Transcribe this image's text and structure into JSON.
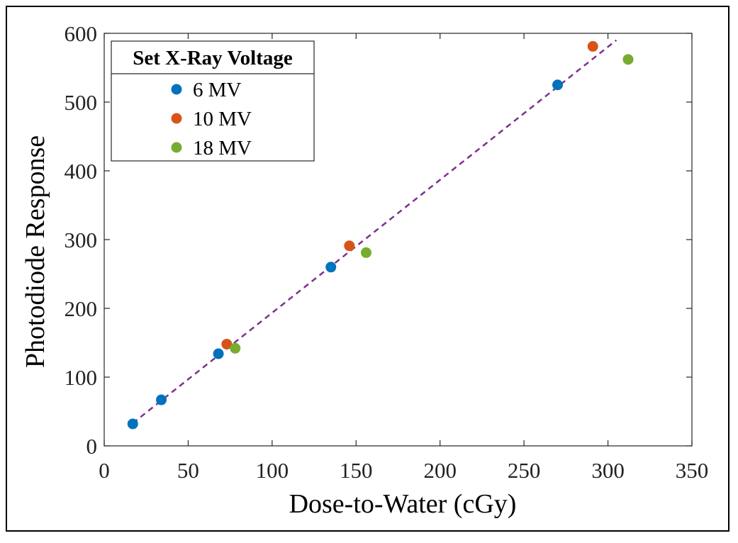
{
  "chart_data": {
    "type": "scatter",
    "title": "",
    "xlabel": "Dose-to-Water (cGy)",
    "ylabel": "Photodiode Response",
    "xlim": [
      0,
      350
    ],
    "ylim": [
      0,
      600
    ],
    "xticks": [
      0,
      50,
      100,
      150,
      200,
      250,
      300,
      350
    ],
    "yticks": [
      0,
      100,
      200,
      300,
      400,
      500,
      600
    ],
    "xtick_labels": [
      "0",
      "50",
      "100",
      "150",
      "200",
      "250",
      "300",
      "350"
    ],
    "ytick_labels": [
      "0",
      "100",
      "200",
      "300",
      "400",
      "500",
      "600"
    ],
    "grid": false,
    "legend": {
      "title": "Set X-Ray Voltage",
      "placement": "top-left"
    },
    "series": [
      {
        "name": "6 MV",
        "color": "#0072BD",
        "points": [
          {
            "x": 17,
            "y": 32
          },
          {
            "x": 34,
            "y": 67
          },
          {
            "x": 68,
            "y": 134
          },
          {
            "x": 135,
            "y": 260
          },
          {
            "x": 270,
            "y": 525
          }
        ]
      },
      {
        "name": "10 MV",
        "color": "#D95319",
        "points": [
          {
            "x": 73,
            "y": 148
          },
          {
            "x": 146,
            "y": 291
          },
          {
            "x": 291,
            "y": 581
          }
        ]
      },
      {
        "name": "18 MV",
        "color": "#77AC30",
        "points": [
          {
            "x": 78,
            "y": 142
          },
          {
            "x": 156,
            "y": 281
          },
          {
            "x": 312,
            "y": 562
          }
        ]
      }
    ],
    "fit_line": {
      "color": "#7E2F8E",
      "style": "dashed",
      "x": [
        17,
        305
      ],
      "y": [
        33,
        590
      ]
    }
  }
}
